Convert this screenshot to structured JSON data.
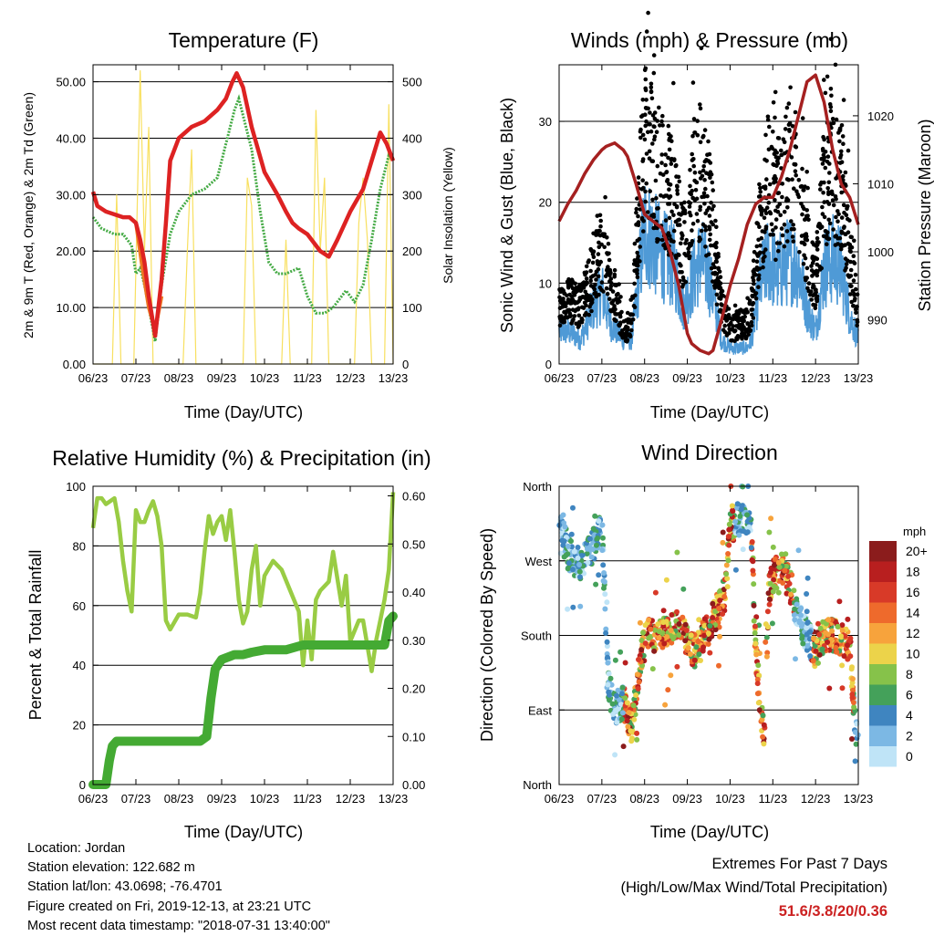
{
  "x_ticks": [
    "06/23",
    "07/23",
    "08/23",
    "09/23",
    "10/23",
    "11/23",
    "12/23",
    "13/23"
  ],
  "x_label": "Time (Day/UTC)",
  "colors": {
    "t2m": "#dd2222",
    "t9m": "#ee7722",
    "td2m": "#44aa44",
    "solar": "#f8e060",
    "wind": "#4f9ad6",
    "gust": "#000000",
    "pressure": "#a52020",
    "rh": "#99cc44",
    "precip": "#44aa33"
  },
  "chart_data": [
    {
      "type": "line",
      "title": "Temperature (F)",
      "xlabel": "Time (Day/UTC)",
      "ylabel": "2m & 9m T (Red, Orange) & 2m Td (Green)",
      "y2label": "Solar Insolation (Yellow)",
      "ylim": [
        0,
        53
      ],
      "y2lim": [
        0,
        530
      ],
      "yticks": [
        "0.00",
        "10.00",
        "20.00",
        "30.00",
        "40.00",
        "50.00"
      ],
      "y2ticks": [
        "0",
        "100",
        "200",
        "300",
        "400",
        "500"
      ],
      "x_range": [
        0,
        7
      ],
      "series": [
        {
          "key": "t2m",
          "x": [
            0,
            0.1,
            0.3,
            0.5,
            0.7,
            0.85,
            1.0,
            1.1,
            1.2,
            1.3,
            1.45,
            1.6,
            1.7,
            1.8,
            2.0,
            2.3,
            2.6,
            2.9,
            3.1,
            3.25,
            3.35,
            3.5,
            3.7,
            4.0,
            4.3,
            4.5,
            4.65,
            4.8,
            5.0,
            5.3,
            5.5,
            5.7,
            6.0,
            6.3,
            6.5,
            6.7,
            6.85,
            7.0
          ],
          "y": [
            30.5,
            28,
            27,
            26.5,
            26,
            26,
            25,
            22,
            18,
            12,
            5,
            15,
            25,
            36,
            40,
            42,
            43,
            45,
            47,
            50,
            51.5,
            49,
            42,
            34,
            30,
            27,
            25,
            24,
            23,
            20,
            19,
            22,
            27,
            31,
            36,
            41,
            39,
            36
          ]
        },
        {
          "key": "t9m",
          "x": [
            1.0,
            1.15,
            1.3,
            1.45,
            1.6
          ],
          "y": [
            25,
            17,
            10,
            6,
            12
          ]
        },
        {
          "key": "td2m",
          "x": [
            0,
            0.2,
            0.5,
            0.7,
            0.9,
            1.0,
            1.1,
            1.2,
            1.3,
            1.45,
            1.6,
            1.8,
            2.0,
            2.3,
            2.6,
            2.9,
            3.1,
            3.3,
            3.4,
            3.5,
            3.7,
            3.9,
            4.1,
            4.3,
            4.5,
            4.8,
            5.0,
            5.2,
            5.4,
            5.6,
            5.9,
            6.1,
            6.3,
            6.5,
            6.7,
            6.9,
            7.0
          ],
          "y": [
            26,
            24,
            23,
            23,
            21,
            16,
            17,
            14,
            10,
            4,
            14,
            23,
            27,
            30,
            31,
            33,
            39,
            45,
            47,
            44,
            38,
            27,
            18,
            16,
            16,
            17,
            12,
            9,
            9,
            10,
            13,
            11,
            14,
            22,
            31,
            37,
            36
          ]
        },
        {
          "key": "solar",
          "x": [
            0,
            0.45,
            0.55,
            0.65,
            0.75,
            0.95,
            1.1,
            1.2,
            1.3,
            1.4,
            1.6,
            2.1,
            2.2,
            2.3,
            2.4,
            3.5,
            3.6,
            3.7,
            3.8,
            4.4,
            4.5,
            4.6,
            5.1,
            5.2,
            5.3,
            5.4,
            5.5,
            6.1,
            6.2,
            6.3,
            6.4,
            6.5,
            6.8,
            6.9,
            7.0
          ],
          "y": [
            0,
            0,
            300,
            0,
            0,
            0,
            520,
            200,
            420,
            0,
            0,
            0,
            200,
            380,
            0,
            0,
            330,
            280,
            0,
            0,
            220,
            0,
            0,
            450,
            200,
            330,
            0,
            0,
            250,
            330,
            220,
            0,
            0,
            460,
            0
          ]
        }
      ]
    },
    {
      "type": "scatter",
      "title": "Winds (mph) & Pressure (mb)",
      "xlabel": "Time (Day/UTC)",
      "ylabel": "Sonic Wind & Gust (Blue, Black)",
      "y2label": "Station Pressure (Maroon)",
      "ylim": [
        0,
        37
      ],
      "y2lim": [
        983.5,
        1027.5
      ],
      "yticks": [
        "0",
        "10",
        "20",
        "30"
      ],
      "y2ticks": [
        "990",
        "1000",
        "1010",
        "1020"
      ],
      "x_range": [
        0,
        7
      ],
      "envelope_x": [
        0,
        0.25,
        0.5,
        0.8,
        1.0,
        1.2,
        1.5,
        1.7,
        1.85,
        2.0,
        2.2,
        2.5,
        2.7,
        2.9,
        3.1,
        3.3,
        3.5,
        3.8,
        4.0,
        4.2,
        4.4,
        4.5,
        4.7,
        4.9,
        5.1,
        5.4,
        5.6,
        5.8,
        6.0,
        6.2,
        6.4,
        6.6,
        6.8,
        7.0
      ],
      "wind_mean": [
        4,
        4,
        3,
        7,
        9,
        5,
        3,
        3,
        10,
        17,
        15,
        13,
        12,
        7,
        10,
        13,
        11,
        3,
        2,
        2,
        2,
        3,
        10,
        13,
        11,
        13,
        12,
        7,
        4,
        12,
        13,
        12,
        6,
        3
      ],
      "gust_mean": [
        7,
        8,
        7,
        11,
        14,
        10,
        4,
        5,
        18,
        27,
        25,
        22,
        20,
        14,
        20,
        24,
        20,
        7,
        4,
        5,
        5,
        7,
        17,
        23,
        20,
        24,
        22,
        14,
        10,
        22,
        24,
        22,
        14,
        6
      ],
      "pressure": {
        "x": [
          0,
          0.2,
          0.4,
          0.6,
          0.8,
          1.0,
          1.1,
          1.3,
          1.5,
          1.6,
          1.8,
          2.0,
          2.2,
          2.4,
          2.6,
          2.8,
          3.0,
          3.1,
          3.3,
          3.5,
          3.6,
          3.8,
          4.0,
          4.2,
          4.4,
          4.6,
          4.8,
          5.0,
          5.2,
          5.4,
          5.6,
          5.8,
          6.0,
          6.2,
          6.4,
          6.6,
          6.8,
          7.0
        ],
        "y": [
          1004.5,
          1007,
          1009,
          1011.5,
          1013.5,
          1015,
          1015.5,
          1016,
          1015,
          1014,
          1010,
          1005.5,
          1004.5,
          1003.5,
          1000,
          995,
          988,
          986.5,
          985.5,
          985,
          985.5,
          990,
          995,
          999,
          1004,
          1007,
          1008,
          1008,
          1011,
          1015,
          1020,
          1025,
          1026,
          1022,
          1015,
          1010,
          1008,
          1004
        ]
      }
    },
    {
      "type": "line",
      "title": "Relative Humidity (%) & Precipitation (in)",
      "xlabel": "Time (Day/UTC)",
      "ylabel": "Percent & Total Rainfall",
      "ylim": [
        0,
        100
      ],
      "y2lim": [
        0,
        0.62
      ],
      "yticks": [
        "0",
        "20",
        "40",
        "60",
        "80",
        "100"
      ],
      "y2ticks": [
        "0.00",
        "0.10",
        "0.20",
        "0.30",
        "0.40",
        "0.50",
        "0.60"
      ],
      "x_range": [
        0,
        7
      ],
      "series": [
        {
          "key": "rh",
          "x": [
            0,
            0.1,
            0.2,
            0.3,
            0.5,
            0.6,
            0.7,
            0.8,
            0.9,
            1.0,
            1.1,
            1.2,
            1.3,
            1.4,
            1.5,
            1.6,
            1.7,
            1.8,
            2.0,
            2.2,
            2.4,
            2.5,
            2.6,
            2.7,
            2.8,
            2.9,
            3.0,
            3.1,
            3.2,
            3.3,
            3.4,
            3.5,
            3.6,
            3.7,
            3.8,
            3.9,
            4.0,
            4.2,
            4.4,
            4.6,
            4.8,
            4.9,
            5.0,
            5.1,
            5.2,
            5.3,
            5.5,
            5.6,
            5.8,
            5.9,
            6.0,
            6.2,
            6.3,
            6.5,
            6.6,
            6.8,
            6.9,
            7.0
          ],
          "y": [
            86,
            96,
            96,
            94,
            96,
            88,
            75,
            65,
            58,
            92,
            88,
            88,
            92,
            95,
            90,
            80,
            55,
            52,
            57,
            57,
            56,
            64,
            78,
            90,
            84,
            88,
            90,
            82,
            92,
            78,
            62,
            54,
            58,
            72,
            80,
            60,
            70,
            75,
            72,
            65,
            58,
            40,
            55,
            42,
            62,
            65,
            68,
            78,
            60,
            70,
            48,
            55,
            55,
            38,
            48,
            62,
            72,
            98
          ]
        },
        {
          "key": "precip",
          "x": [
            0,
            0.3,
            0.38,
            0.45,
            0.55,
            0.7,
            1.5,
            2.0,
            2.5,
            2.65,
            2.75,
            2.85,
            3.0,
            3.3,
            3.5,
            3.7,
            4.0,
            4.5,
            4.9,
            5.2,
            5.5,
            6.0,
            6.5,
            6.8,
            6.9,
            7.0
          ],
          "y": [
            0,
            0,
            0.05,
            0.08,
            0.09,
            0.09,
            0.09,
            0.09,
            0.09,
            0.1,
            0.18,
            0.24,
            0.26,
            0.27,
            0.27,
            0.275,
            0.28,
            0.28,
            0.29,
            0.29,
            0.29,
            0.29,
            0.29,
            0.29,
            0.34,
            0.35
          ]
        }
      ]
    },
    {
      "type": "scatter",
      "title": "Wind Direction",
      "xlabel": "Time (Day/UTC)",
      "ylabel": "Direction (Colored By Speed)",
      "ylim": [
        0,
        360
      ],
      "yticks": [
        "North",
        "East",
        "South",
        "West",
        "North"
      ],
      "x_range": [
        0,
        7
      ],
      "legend": {
        "title": "mph",
        "labels": [
          "20+",
          "18",
          "16",
          "14",
          "12",
          "10",
          "8",
          "6",
          "4",
          "2",
          "0"
        ],
        "colors": [
          "#8b1c1c",
          "#b81f1f",
          "#d83a28",
          "#ee6a2c",
          "#f7a33c",
          "#ecd34a",
          "#86c24a",
          "#44a15a",
          "#3f85c0",
          "#7cb8e4",
          "#bfe4f7"
        ]
      },
      "trace_x": [
        0,
        0.2,
        0.35,
        0.5,
        0.7,
        0.9,
        1.0,
        1.15,
        1.3,
        1.5,
        1.7,
        1.9,
        2.0,
        2.2,
        2.4,
        2.6,
        2.8,
        3.0,
        3.2,
        3.4,
        3.6,
        3.8,
        3.9,
        4.0,
        4.2,
        4.4,
        4.5,
        4.6,
        4.7,
        4.8,
        4.9,
        5.0,
        5.2,
        5.4,
        5.6,
        5.8,
        6.0,
        6.2,
        6.4,
        6.6,
        6.8,
        6.9,
        7.0
      ],
      "trace_dir": [
        330,
        280,
        270,
        265,
        280,
        300,
        310,
        120,
        90,
        100,
        70,
        150,
        180,
        180,
        180,
        185,
        200,
        170,
        160,
        180,
        200,
        220,
        240,
        310,
        320,
        320,
        300,
        160,
        100,
        60,
        230,
        250,
        265,
        240,
        200,
        180,
        160,
        180,
        180,
        175,
        170,
        90,
        45
      ]
    }
  ],
  "footer": {
    "location": "Location: Jordan",
    "elevation": "Station elevation: 122.682 m",
    "latlon": "Station lat/lon: 43.0698; -76.4701",
    "created": "Figure created on Fri, 2019-12-13, at 23:21 UTC",
    "timestamp": "Most recent data timestamp: \"2018-07-31 13:40:00\"",
    "extremes_title": "Extremes For Past 7 Days",
    "extremes_sub": "(High/Low/Max Wind/Total Precipitation)",
    "extremes_values": "51.6/3.8/20/0.36"
  }
}
